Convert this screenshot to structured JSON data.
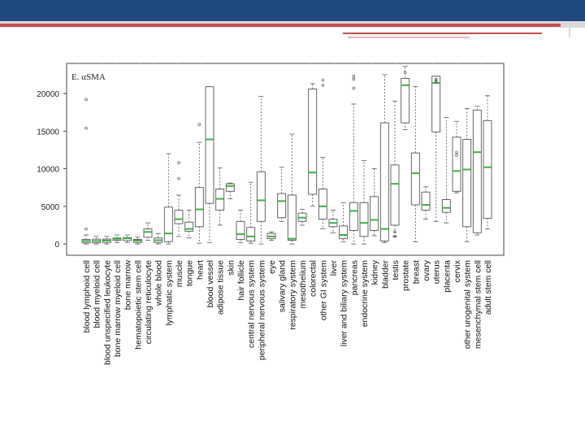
{
  "colors": {
    "header": "#1f497d",
    "accent_red": "#c0504d",
    "box_stroke": "#555555",
    "median": "#3cb043"
  },
  "chart_data": {
    "type": "boxplot",
    "title": "E. αSMA",
    "xlabel": "",
    "ylabel": "",
    "ylim": [
      -1500,
      24000
    ],
    "y_ticks": [
      0,
      5000,
      10000,
      15000,
      20000
    ],
    "grid": false,
    "legend": "none",
    "categories": [
      "blood lymphoid cell",
      "blood myeloid cell",
      "blood unspecified leukocyte",
      "bone marrow myeloid cell",
      "bone marrow",
      "hematopoietic stem cell",
      "circulating reticulocyte",
      "whole blood",
      "lymphatic system",
      "muscle",
      "tongue",
      "heart",
      "blood vessel",
      "adipose tissue",
      "skin",
      "hair follicle",
      "central nervous system",
      "peripheral nervous system",
      "eye",
      "salivary gland",
      "respiratory system",
      "mesothelium",
      "colorectal",
      "other GI system",
      "liver",
      "liver and biliary system",
      "pancreas",
      "endocrine system",
      "kidney",
      "bladder",
      "testis",
      "prostate",
      "breast",
      "ovary",
      "uterus",
      "placenta",
      "cervix",
      "other urogenital system",
      "mesenchymal stem cell",
      "adult stem cell"
    ],
    "boxes": [
      {
        "whisker_low": 0,
        "q1": 150,
        "median": 400,
        "q3": 600,
        "whisker_high": 1200,
        "outliers": [
          19200,
          15400,
          2000
        ]
      },
      {
        "whisker_low": 0,
        "q1": 150,
        "median": 400,
        "q3": 650,
        "whisker_high": 1000,
        "outliers": []
      },
      {
        "whisker_low": 0,
        "q1": 200,
        "median": 450,
        "q3": 650,
        "whisker_high": 1000,
        "outliers": []
      },
      {
        "whisker_low": 200,
        "q1": 500,
        "median": 700,
        "q3": 800,
        "whisker_high": 1200,
        "outliers": []
      },
      {
        "whisker_low": 200,
        "q1": 450,
        "median": 750,
        "q3": 850,
        "whisker_high": 1200,
        "outliers": []
      },
      {
        "whisker_low": 0,
        "q1": 200,
        "median": 450,
        "q3": 600,
        "whisker_high": 900,
        "outliers": []
      },
      {
        "whisker_low": 500,
        "q1": 900,
        "median": 1600,
        "q3": 2000,
        "whisker_high": 2800,
        "outliers": []
      },
      {
        "whisker_low": 0,
        "q1": 200,
        "median": 500,
        "q3": 800,
        "whisker_high": 1400,
        "outliers": []
      },
      {
        "whisker_low": 0,
        "q1": 300,
        "median": 1400,
        "q3": 4900,
        "whisker_high": 12000,
        "outliers": []
      },
      {
        "whisker_low": 1000,
        "q1": 2700,
        "median": 3300,
        "q3": 4500,
        "whisker_high": 6500,
        "outliers": [
          10800,
          8700
        ]
      },
      {
        "whisker_low": 800,
        "q1": 1700,
        "median": 2000,
        "q3": 2900,
        "whisker_high": 4500,
        "outliers": []
      },
      {
        "whisker_low": 100,
        "q1": 2300,
        "median": 4600,
        "q3": 7500,
        "whisker_high": 13500,
        "outliers": [
          15900
        ]
      },
      {
        "whisker_low": 200,
        "q1": 5400,
        "median": 13900,
        "q3": 20900,
        "whisker_high": 20900,
        "outliers": []
      },
      {
        "whisker_low": 2500,
        "q1": 4500,
        "median": 6000,
        "q3": 7300,
        "whisker_high": 10100,
        "outliers": []
      },
      {
        "whisker_low": 6000,
        "q1": 7000,
        "median": 7700,
        "q3": 8000,
        "whisker_high": 8100,
        "outliers": []
      },
      {
        "whisker_low": 200,
        "q1": 600,
        "median": 1300,
        "q3": 3000,
        "whisker_high": 4500,
        "outliers": []
      },
      {
        "whisker_low": 100,
        "q1": 400,
        "median": 1000,
        "q3": 2200,
        "whisker_high": 8200,
        "outliers": []
      },
      {
        "whisker_low": 0,
        "q1": 3000,
        "median": 5800,
        "q3": 9600,
        "whisker_high": 19600,
        "outliers": []
      },
      {
        "whisker_low": 500,
        "q1": 700,
        "median": 1000,
        "q3": 1400,
        "whisker_high": 1600,
        "outliers": []
      },
      {
        "whisker_low": 3000,
        "q1": 3500,
        "median": 5700,
        "q3": 6700,
        "whisker_high": 10200,
        "outliers": []
      },
      {
        "whisker_low": 0,
        "q1": 500,
        "median": 700,
        "q3": 6500,
        "whisker_high": 14600,
        "outliers": []
      },
      {
        "whisker_low": 2500,
        "q1": 3000,
        "median": 3500,
        "q3": 4100,
        "whisker_high": 4600,
        "outliers": []
      },
      {
        "whisker_low": 5000,
        "q1": 6600,
        "median": 9500,
        "q3": 20600,
        "whisker_high": 21300,
        "outliers": []
      },
      {
        "whisker_low": 2000,
        "q1": 3300,
        "median": 5000,
        "q3": 7300,
        "whisker_high": 11500,
        "outliers": [
          21800,
          21100
        ]
      },
      {
        "whisker_low": 1500,
        "q1": 2300,
        "median": 2800,
        "q3": 3300,
        "whisker_high": 4500,
        "outliers": []
      },
      {
        "whisker_low": 300,
        "q1": 700,
        "median": 1200,
        "q3": 2400,
        "whisker_high": 5500,
        "outliers": []
      },
      {
        "whisker_low": 0,
        "q1": 1800,
        "median": 4400,
        "q3": 5500,
        "whisker_high": 18600,
        "outliers": [
          22300,
          21900,
          20700
        ]
      },
      {
        "whisker_low": 0,
        "q1": 1000,
        "median": 2800,
        "q3": 5500,
        "whisker_high": 11100,
        "outliers": []
      },
      {
        "whisker_low": 1100,
        "q1": 1800,
        "median": 3200,
        "q3": 6300,
        "whisker_high": 10000,
        "outliers": []
      },
      {
        "whisker_low": 200,
        "q1": 400,
        "median": 2000,
        "q3": 16100,
        "whisker_high": 22500,
        "outliers": []
      },
      {
        "whisker_low": 1000,
        "q1": 2500,
        "median": 8000,
        "q3": 10500,
        "whisker_high": 19000,
        "outliers": [
          1000,
          1600
        ]
      },
      {
        "whisker_low": 15200,
        "q1": 16100,
        "median": 21100,
        "q3": 22000,
        "whisker_high": 23600,
        "outliers": [
          22800
        ]
      },
      {
        "whisker_low": 300,
        "q1": 5200,
        "median": 9400,
        "q3": 12100,
        "whisker_high": 20900,
        "outliers": []
      },
      {
        "whisker_low": 3300,
        "q1": 4500,
        "median": 5200,
        "q3": 6900,
        "whisker_high": 7600,
        "outliers": []
      },
      {
        "whisker_low": 3000,
        "q1": 14900,
        "median": 21400,
        "q3": 22300,
        "whisker_high": 22300,
        "outliers": [
          21900,
          21700,
          21500
        ]
      },
      {
        "whisker_low": 2800,
        "q1": 4200,
        "median": 4800,
        "q3": 5900,
        "whisker_high": 16800,
        "outliers": []
      },
      {
        "whisker_low": 6800,
        "q1": 7000,
        "median": 9700,
        "q3": 14200,
        "whisker_high": 16300,
        "outliers": [
          12200,
          11800
        ]
      },
      {
        "whisker_low": 300,
        "q1": 2300,
        "median": 9900,
        "q3": 13900,
        "whisker_high": 18000,
        "outliers": []
      },
      {
        "whisker_low": 1200,
        "q1": 1500,
        "median": 12200,
        "q3": 17800,
        "whisker_high": 18300,
        "outliers": []
      },
      {
        "whisker_low": 2000,
        "q1": 3400,
        "median": 10200,
        "q3": 16400,
        "whisker_high": 19700,
        "outliers": []
      }
    ]
  }
}
